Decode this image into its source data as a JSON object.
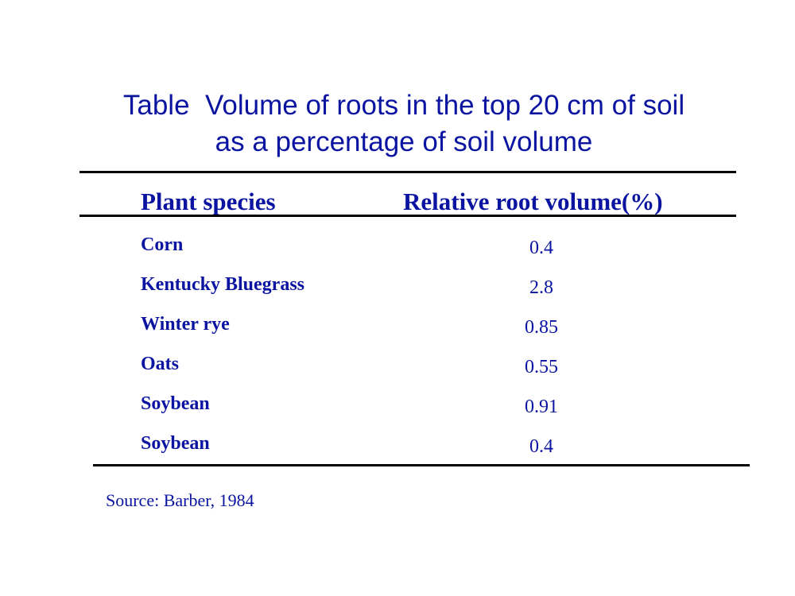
{
  "title": {
    "line1": "Table  Volume of roots in the top 20 cm of soil",
    "line2": "as a percentage of soil volume"
  },
  "table": {
    "headers": {
      "species": "Plant species",
      "value": "Relative root volume(%)"
    },
    "rows": [
      {
        "species": "Corn",
        "value": "0.4"
      },
      {
        "species": "Kentucky Bluegrass",
        "value": "2.8"
      },
      {
        "species": "Winter rye",
        "value": "0.85"
      },
      {
        "species": "Oats",
        "value": "0.55"
      },
      {
        "species": "Soybean",
        "value": "0.91"
      },
      {
        "species": "Soybean",
        "value": "0.4"
      }
    ]
  },
  "source": "Source: Barber, 1984",
  "colors": {
    "text": "#0a14a0",
    "rules": "#000000",
    "background": "#ffffff"
  }
}
